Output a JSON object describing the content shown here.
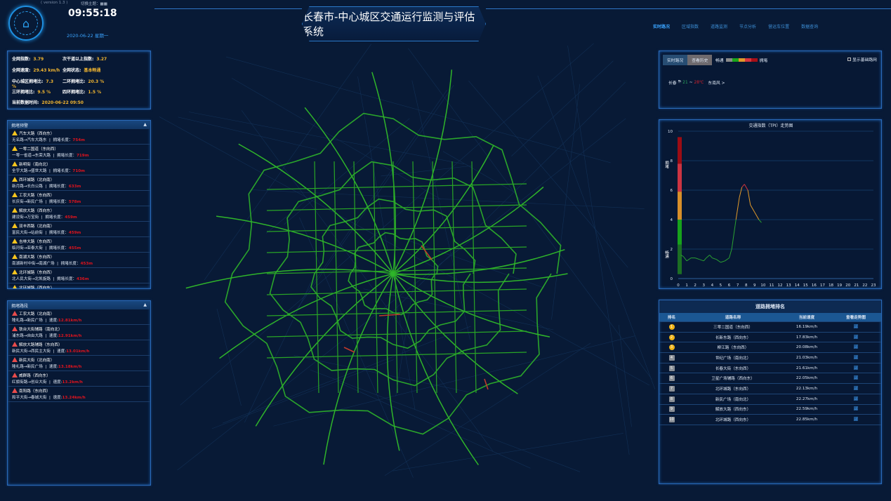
{
  "header": {
    "version": "( version 1.3 )",
    "theme_label": "切换主题：",
    "time": "09:55:18",
    "date": "2020-06-22 星期一",
    "title": "长春市-中心城区交通运行监测与评估系统"
  },
  "nav": [
    {
      "label": "实时路况",
      "active": true
    },
    {
      "label": "区域指数"
    },
    {
      "label": "道路监测"
    },
    {
      "label": "节点分析"
    },
    {
      "label": "营运车位置"
    },
    {
      "label": "数据查询"
    }
  ],
  "summary": {
    "net_index_label": "全网指数:",
    "net_index": "3.79",
    "secondary_index_label": "次干道以上指数:",
    "secondary_index": "3.27",
    "net_speed_label": "全网速度:",
    "net_speed": "29.43 km/h",
    "net_status_label": "全网状态:",
    "net_status": "基本畅通",
    "center_label": "中心城区拥堵比:",
    "center": "7.3 %",
    "ring2_label": "二环拥堵比:",
    "ring2": "20.3 %",
    "ring3_label": "三环拥堵比:",
    "ring3": "9.5 %",
    "ring4_label": "四环拥堵比:",
    "ring4": "1.5 %",
    "data_time_label": "当前数据时间:",
    "data_time": "2020-06-22 09:50"
  },
  "warnings": {
    "title": "拥堵预警",
    "length_label": "拥堵长度：",
    "items": [
      {
        "road": "汽车大路（西向东）",
        "route": "无名路→汽车大路东",
        "length": "754m"
      },
      {
        "road": "一零二国道（东向西）",
        "route": "一零一省道→东荣大路",
        "length": "719m"
      },
      {
        "road": "新明街（南向北）",
        "route": "全宇大路→盛世大路",
        "length": "710m"
      },
      {
        "road": "西环城路（北向南）",
        "route": "新月路→长白公路",
        "length": "633m"
      },
      {
        "road": "工农大路（东向西）",
        "route": "长庆街→新民广场",
        "length": "578m"
      },
      {
        "road": "解放大路（西向东）",
        "route": "建设街→万宝街",
        "length": "459m"
      },
      {
        "road": "双丰西路（北向南）",
        "route": "富民大街→站前街",
        "length": "459m"
      },
      {
        "road": "吉林大路（东向西）",
        "route": "临河街→亚泰大街",
        "length": "455m"
      },
      {
        "road": "南湖大路（东向西）",
        "route": "南湖新村中街→南湖广场",
        "length": "453m"
      },
      {
        "road": "北环城路（东向西）",
        "route": "北人民大街→北凯旋路",
        "length": "436m"
      },
      {
        "road": "北环城路（西向东）",
        "route": "",
        "length": ""
      }
    ]
  },
  "congested": {
    "title": "拥堵路段",
    "speed_label": "速度:",
    "items": [
      {
        "road": "工农大路（北向南）",
        "route": "隆礼路→新民广场",
        "speed": "12.81km/h"
      },
      {
        "road": "铁台大街辅路（南向北）",
        "route": "浦东路→自由大路",
        "speed": "12.91km/h"
      },
      {
        "road": "解放大路辅路（东向西）",
        "route": "新民大街→西民主大街",
        "speed": "13.01km/h"
      },
      {
        "road": "新民大街（北向南）",
        "route": "隆礼路→新民广场",
        "speed": "13.18km/h"
      },
      {
        "road": "威群路（西向东）",
        "route": "红旗街路→创业大街",
        "speed": "13.2km/h"
      },
      {
        "road": "南阳路（东向西）",
        "route": "和平大街→春城大街",
        "speed": "13.24km/h"
      }
    ]
  },
  "controls": {
    "realtime": "实时路况",
    "history": "查看历史",
    "smooth": "畅通",
    "jam": "拥堵",
    "legend_colors": [
      "#8a8a8a",
      "#1aa51a",
      "#e0982a",
      "#d6343c",
      "#a80f17"
    ],
    "show_base": "显示基础路网",
    "show_base_checked": false,
    "weather": {
      "city": "长春",
      "low": "21",
      "sep": "~",
      "high": "28℃",
      "wind": "东南风 >"
    }
  },
  "chart_data": {
    "type": "line",
    "title": "交通指数（TPI）走势图",
    "ylim": [
      0,
      10
    ],
    "xlim": [
      0,
      23
    ],
    "yticks": [
      0,
      2,
      4,
      6,
      8,
      10
    ],
    "xticks": [
      0,
      1,
      2,
      3,
      4,
      5,
      6,
      7,
      8,
      9,
      10,
      11,
      12,
      13,
      14,
      15,
      16,
      17,
      18,
      19,
      20,
      21,
      22,
      23
    ],
    "band_top_label": "拥堵",
    "band_bottom_label": "畅通",
    "x": [
      0.3,
      0.6,
      1,
      1.5,
      2,
      2.5,
      3,
      3.3,
      3.7,
      4,
      4.5,
      5,
      5.5,
      6,
      6.3,
      6.8,
      7.2,
      7.5,
      7.8,
      8.2,
      8.5,
      9,
      9.5,
      9.8
    ],
    "y": [
      1.6,
      1.5,
      1.2,
      1.4,
      1.4,
      1.3,
      1.2,
      1.4,
      1.6,
      1.4,
      1.3,
      1.1,
      1.2,
      1.4,
      2.0,
      4.0,
      5.5,
      6.2,
      6.4,
      6.0,
      5.0,
      4.5,
      4.0,
      3.8
    ]
  },
  "ranking": {
    "title": "道路拥堵排名",
    "headers": [
      "排名",
      "道路名称",
      "当前速度",
      "查看走势图"
    ],
    "rows": [
      {
        "rank": "1",
        "road": "三零二国道（东向西）",
        "speed": "16.19km/h"
      },
      {
        "rank": "2",
        "road": "长新东路（西向东）",
        "speed": "17.83km/h"
      },
      {
        "rank": "3",
        "road": "柳江路（东向西）",
        "speed": "20.08km/h"
      },
      {
        "rank": "4",
        "road": "世纪广场（南向北）",
        "speed": "21.03km/h"
      },
      {
        "rank": "5",
        "road": "长春大街（东向西）",
        "speed": "21.61km/h"
      },
      {
        "rank": "6",
        "road": "卫星广场辅路（西向东）",
        "speed": "22.05km/h"
      },
      {
        "rank": "7",
        "road": "北环城路（东向西）",
        "speed": "22.13km/h"
      },
      {
        "rank": "8",
        "road": "新民广场（南向北）",
        "speed": "22.27km/h"
      },
      {
        "rank": "9",
        "road": "解放大路（西向东）",
        "speed": "22.59km/h"
      },
      {
        "rank": "10",
        "road": "北环城路（西向东）",
        "speed": "22.85km/h"
      }
    ]
  }
}
